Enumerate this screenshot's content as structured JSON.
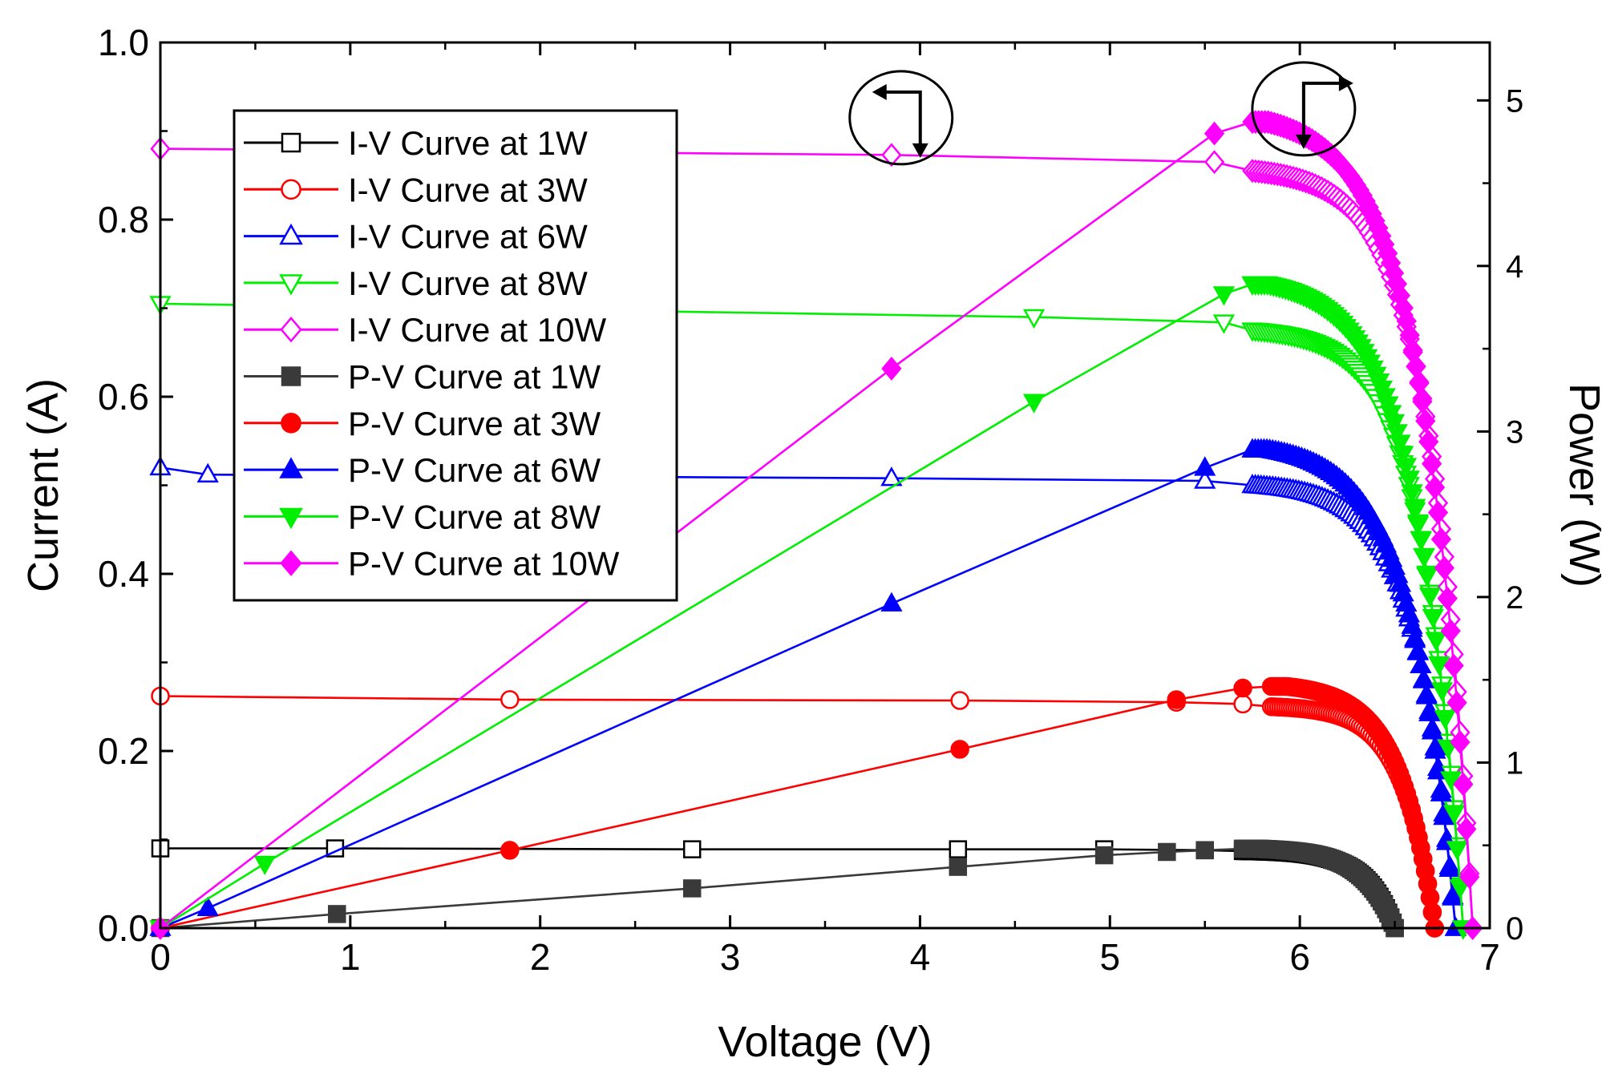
{
  "chart_data": {
    "type": "line",
    "xlabel": "Voltage (V)",
    "ylabel_left": "Current (A)",
    "ylabel_right": "Power (W)",
    "xlim": [
      0,
      7
    ],
    "ylim_left": [
      0,
      1.0
    ],
    "ylim_right": [
      0,
      5.35
    ],
    "x_ticks": [
      "0",
      "1",
      "2",
      "3",
      "4",
      "5",
      "6",
      "7"
    ],
    "y_left_ticks": [
      "0.0",
      "0.2",
      "0.4",
      "0.6",
      "0.8",
      "1.0"
    ],
    "y_right_ticks": [
      "0",
      "1",
      "2",
      "3",
      "4",
      "5"
    ],
    "legend_position": "top-left",
    "series": [
      {
        "name": "I-V Curve at 1W",
        "kind": "iv",
        "color": "#000000",
        "marker": "square",
        "filled": false,
        "isc": 0.09,
        "voc": 6.5,
        "points": [
          [
            0.0,
            0.09
          ],
          [
            0.92,
            0.09
          ],
          [
            2.8,
            0.089
          ],
          [
            4.2,
            0.089
          ],
          [
            4.97,
            0.089
          ],
          [
            5.5,
            0.088
          ],
          [
            5.7,
            0.087
          ]
        ]
      },
      {
        "name": "I-V Curve at 3W",
        "kind": "iv",
        "color": "#ff0000",
        "marker": "circle",
        "filled": false,
        "isc": 0.262,
        "voc": 6.71,
        "points": [
          [
            0.0,
            0.262
          ],
          [
            1.84,
            0.258
          ],
          [
            4.21,
            0.257
          ],
          [
            5.35,
            0.255
          ],
          [
            5.7,
            0.253
          ],
          [
            5.85,
            0.25
          ]
        ]
      },
      {
        "name": "I-V Curve at 6W",
        "kind": "iv",
        "color": "#0000ff",
        "marker": "triangle-up",
        "filled": false,
        "isc": 0.52,
        "voc": 6.82,
        "points": [
          [
            0.0,
            0.52
          ],
          [
            0.25,
            0.512
          ],
          [
            3.85,
            0.508
          ],
          [
            5.5,
            0.505
          ],
          [
            5.75,
            0.5
          ]
        ]
      },
      {
        "name": "I-V Curve at 8W",
        "kind": "iv",
        "color": "#00ee00",
        "marker": "triangle-down",
        "filled": false,
        "isc": 0.705,
        "voc": 6.86,
        "points": [
          [
            0.0,
            0.705
          ],
          [
            4.6,
            0.69
          ],
          [
            5.6,
            0.684
          ],
          [
            5.75,
            0.675
          ]
        ]
      },
      {
        "name": "I-V Curve at 10W",
        "kind": "iv",
        "color": "#ff00ff",
        "marker": "diamond",
        "filled": false,
        "isc": 0.88,
        "voc": 6.91,
        "points": [
          [
            0.0,
            0.88
          ],
          [
            3.85,
            0.873
          ],
          [
            5.55,
            0.865
          ],
          [
            5.75,
            0.855
          ]
        ]
      },
      {
        "name": "P-V Curve at 1W",
        "kind": "pv",
        "color": "#3a3a3a",
        "marker": "square",
        "filled": true,
        "voc": 6.5,
        "pmax": 0.48,
        "points": [
          [
            0.0,
            0.0
          ],
          [
            0.93,
            0.085
          ],
          [
            2.8,
            0.24
          ],
          [
            4.2,
            0.37
          ],
          [
            4.97,
            0.44
          ],
          [
            5.3,
            0.46
          ],
          [
            5.5,
            0.47
          ],
          [
            5.7,
            0.48
          ]
        ]
      },
      {
        "name": "P-V Curve at 3W",
        "kind": "pv",
        "color": "#ff0000",
        "marker": "circle",
        "filled": true,
        "voc": 6.71,
        "pmax": 1.46,
        "points": [
          [
            0.0,
            0.0
          ],
          [
            1.84,
            0.47
          ],
          [
            4.21,
            1.08
          ],
          [
            5.35,
            1.38
          ],
          [
            5.7,
            1.45
          ],
          [
            5.85,
            1.46
          ]
        ]
      },
      {
        "name": "P-V Curve at 6W",
        "kind": "pv",
        "color": "#0000ff",
        "marker": "triangle-up",
        "filled": true,
        "voc": 6.82,
        "pmax": 2.89,
        "points": [
          [
            0.0,
            0.0
          ],
          [
            0.25,
            0.12
          ],
          [
            3.85,
            1.96
          ],
          [
            5.5,
            2.78
          ],
          [
            5.75,
            2.89
          ]
        ]
      },
      {
        "name": "P-V Curve at 8W",
        "kind": "pv",
        "color": "#00ee00",
        "marker": "triangle-down",
        "filled": true,
        "voc": 6.86,
        "pmax": 3.89,
        "points": [
          [
            0.0,
            0.0
          ],
          [
            0.55,
            0.39
          ],
          [
            4.6,
            3.18
          ],
          [
            5.6,
            3.83
          ],
          [
            5.75,
            3.89
          ]
        ]
      },
      {
        "name": "P-V Curve at 10W",
        "kind": "pv",
        "color": "#ff00ff",
        "marker": "diamond",
        "filled": true,
        "voc": 6.91,
        "pmax": 4.87,
        "points": [
          [
            0.0,
            0.0
          ],
          [
            3.85,
            3.38
          ],
          [
            5.55,
            4.8
          ],
          [
            5.75,
            4.87
          ]
        ]
      }
    ],
    "annotations": [
      {
        "name": "current-axis-callout",
        "x": 3.9,
        "y_left": 0.915,
        "points_to": "left-axis"
      },
      {
        "name": "power-axis-callout",
        "x": 6.02,
        "y_left": 0.925,
        "points_to": "right-axis"
      }
    ]
  }
}
